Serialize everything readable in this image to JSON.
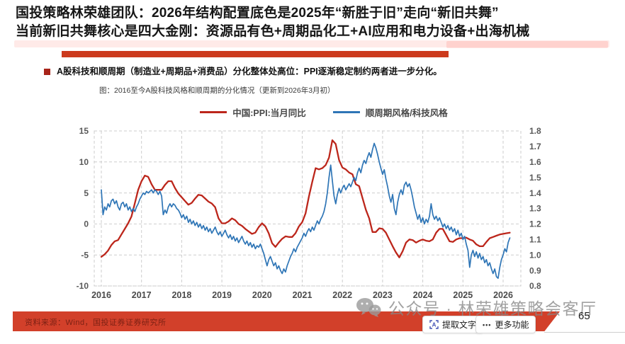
{
  "header": {
    "title_line1": "国投策略林荣雄团队：2026年结构配置底色是2025年“新胜于旧”走向“新旧共舞”",
    "title_line2": "当前新旧共舞核心是四大金刚：资源品有色+周期品化工+AI应用和电力设备+出海机械"
  },
  "bullet": {
    "text": "A股科技和顺周期（制造业+周期品+消费品）分化整体处高位：PPI逐渐稳定制约两者进一步分化。"
  },
  "figure": {
    "caption": "图：2016至今A股科技风格和顺周期的分化情况（更新到2026年3月初）"
  },
  "watermark": {
    "text": "公众号 · 林荣雄策略会客厅",
    "icon": "wechat-icon"
  },
  "footer": {
    "source": "资料来源：Wind，国投证券证券研究所",
    "page_number": "65"
  },
  "toolbar": {
    "extract_text": "提取文字",
    "more": "更多功能"
  },
  "colors": {
    "accent_red": "#cc3a1d",
    "footer_red": "#d2402a",
    "footer_text_red": "#7d2114",
    "ppi_line": "#bc261b",
    "ratio_line": "#2e75b6",
    "grid": "#cdcdcd"
  },
  "chart_data": {
    "type": "line",
    "title": "2016至今A股科技风格和顺周期的分化情况（更新到2026年3月初）",
    "x_ticks": [
      2016,
      2017,
      2018,
      2019,
      2020,
      2021,
      2022,
      2023,
      2024,
      2025,
      2026
    ],
    "left_axis": {
      "ticks": [
        15,
        10,
        5,
        0,
        -5,
        -10
      ],
      "min": -10,
      "max": 15
    },
    "right_axis": {
      "ticks": [
        1.8,
        1.7,
        1.6,
        1.5,
        1.4,
        1.3,
        1.2,
        1.1,
        1.0,
        0.9,
        0.8
      ],
      "min": 0.8,
      "max": 1.8
    },
    "grid": true,
    "legend_position": "top-center",
    "series": [
      {
        "name": "中国:PPI:当月同比",
        "axis": "left",
        "color": "#bc261b",
        "x_start": 2016.0,
        "x_step": 0.0833333,
        "values": [
          -5.3,
          -4.9,
          -4.3,
          -3.4,
          -2.8,
          -2.6,
          -1.7,
          -0.8,
          0.1,
          1.2,
          3.3,
          5.5,
          6.9,
          7.8,
          7.6,
          6.4,
          5.5,
          5.5,
          5.5,
          6.3,
          6.9,
          6.9,
          5.8,
          4.9,
          4.3,
          3.7,
          3.1,
          3.4,
          4.1,
          4.7,
          4.6,
          4.1,
          3.6,
          3.3,
          2.7,
          0.9,
          0.1,
          0.1,
          0.4,
          0.9,
          0.6,
          0.0,
          -0.3,
          -0.8,
          -1.2,
          -1.6,
          -1.4,
          -0.5,
          0.1,
          -0.4,
          -1.5,
          -3.1,
          -3.7,
          -3.0,
          -2.4,
          -2.0,
          -2.1,
          -2.1,
          -1.5,
          -0.4,
          0.3,
          1.7,
          4.4,
          6.8,
          9.0,
          8.8,
          9.0,
          9.5,
          10.7,
          13.5,
          12.9,
          10.3,
          9.1,
          8.8,
          8.3,
          8.0,
          6.4,
          6.1,
          4.2,
          2.3,
          0.9,
          -1.3,
          -1.3,
          -0.7,
          -0.8,
          -1.4,
          -2.5,
          -3.6,
          -4.6,
          -5.4,
          -4.4,
          -3.0,
          -2.5,
          -2.6,
          -3.0,
          -2.7,
          -2.5,
          -2.7,
          -2.8,
          -2.5,
          -1.4,
          -0.8,
          -0.8,
          -1.8,
          -2.8,
          -2.9,
          -2.5,
          -2.3,
          -2.3,
          -2.2,
          -2.5,
          -2.7,
          -3.3,
          -3.6,
          -3.6,
          -2.9,
          -2.3,
          -2.1,
          -1.9,
          -1.7,
          -1.6,
          -1.5,
          -1.4
        ]
      },
      {
        "name": "顺周期风格/科技风格",
        "axis": "right",
        "color": "#2e75b6",
        "x_start": 2016.0,
        "x_step": 0.0416667,
        "values": [
          1.42,
          1.26,
          1.31,
          1.29,
          1.33,
          1.31,
          1.35,
          1.36,
          1.33,
          1.35,
          1.31,
          1.29,
          1.33,
          1.34,
          1.31,
          1.33,
          1.29,
          1.31,
          1.28,
          1.3,
          1.28,
          1.31,
          1.33,
          1.36,
          1.38,
          1.4,
          1.39,
          1.41,
          1.4,
          1.41,
          1.42,
          1.4,
          1.42,
          1.41,
          1.39,
          1.41,
          1.38,
          1.26,
          1.29,
          1.27,
          1.31,
          1.33,
          1.31,
          1.33,
          1.32,
          1.3,
          1.29,
          1.27,
          1.24,
          1.26,
          1.23,
          1.25,
          1.21,
          1.23,
          1.2,
          1.22,
          1.19,
          1.21,
          1.18,
          1.2,
          1.17,
          1.19,
          1.16,
          1.18,
          1.15,
          1.17,
          1.14,
          1.16,
          1.18,
          1.15,
          1.13,
          1.15,
          1.12,
          1.14,
          1.16,
          1.13,
          1.11,
          1.13,
          1.1,
          1.12,
          1.09,
          1.11,
          1.08,
          1.1,
          1.12,
          1.09,
          1.07,
          1.09,
          1.06,
          1.08,
          1.05,
          1.07,
          1.04,
          1.06,
          1.05,
          1.07,
          1.04,
          1.01,
          0.97,
          0.93,
          0.97,
          0.99,
          0.96,
          0.93,
          0.95,
          0.91,
          0.93,
          0.9,
          0.88,
          0.91,
          0.89,
          0.93,
          0.96,
          0.99,
          1.01,
          1.04,
          1.02,
          1.05,
          1.07,
          1.09,
          1.11,
          1.14,
          1.12,
          1.15,
          1.17,
          1.15,
          1.18,
          1.16,
          1.19,
          1.22,
          1.2,
          1.23,
          1.25,
          1.28,
          1.33,
          1.4,
          1.5,
          1.58,
          1.48,
          1.38,
          1.33,
          1.39,
          1.43,
          1.4,
          1.43,
          1.45,
          1.42,
          1.44,
          1.46,
          1.44,
          1.47,
          1.5,
          1.48,
          1.53,
          1.56,
          1.53,
          1.58,
          1.61,
          1.59,
          1.63,
          1.66,
          1.63,
          1.68,
          1.72,
          1.69,
          1.65,
          1.6,
          1.56,
          1.52,
          1.55,
          1.49,
          1.44,
          1.38,
          1.34,
          1.39,
          1.3,
          1.26,
          1.34,
          1.39,
          1.42,
          1.39,
          1.45,
          1.47,
          1.44,
          1.46,
          1.42,
          1.37,
          1.31,
          1.27,
          1.23,
          1.26,
          1.21,
          1.24,
          1.2,
          1.23,
          1.21,
          1.25,
          1.33,
          1.26,
          1.23,
          1.25,
          1.22,
          1.24,
          1.21,
          1.18,
          1.2,
          1.17,
          1.19,
          1.16,
          1.18,
          1.15,
          1.17,
          1.13,
          1.16,
          1.12,
          1.14,
          1.1,
          1.12,
          1.07,
          1.03,
          0.92,
          1.0,
          1.03,
          0.99,
          1.02,
          0.98,
          1.01,
          0.97,
          0.99,
          0.95,
          0.97,
          0.93,
          0.95,
          0.91,
          0.88,
          0.91,
          0.86,
          0.85,
          0.92,
          0.97,
          1.0,
          1.04,
          1.02,
          1.08,
          1.11
        ]
      }
    ]
  }
}
